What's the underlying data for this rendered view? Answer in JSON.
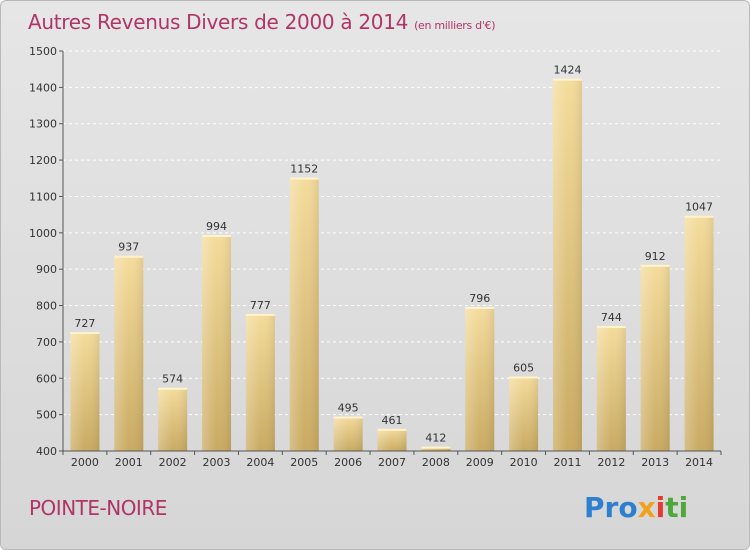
{
  "chart_data": {
    "type": "bar",
    "title": "Autres Revenus Divers de 2000 à 2014",
    "subtitle": "(en milliers d'€)",
    "categories": [
      "2000",
      "2001",
      "2002",
      "2003",
      "2004",
      "2005",
      "2006",
      "2007",
      "2008",
      "2009",
      "2010",
      "2011",
      "2012",
      "2013",
      "2014"
    ],
    "values": [
      727,
      937,
      574,
      994,
      777,
      1152,
      495,
      461,
      412,
      796,
      605,
      1424,
      744,
      912,
      1047
    ],
    "ylim": [
      400,
      1500
    ],
    "yticks": [
      400,
      500,
      600,
      700,
      800,
      900,
      1000,
      1100,
      1200,
      1300,
      1400,
      1500
    ],
    "grid": true,
    "bar_color": "#e6c98a"
  },
  "footer": {
    "city": "POINTE-NOIRE",
    "logo": {
      "p1": "Pro",
      "p2": "x",
      "p3": "i",
      "p4": "ti"
    }
  }
}
